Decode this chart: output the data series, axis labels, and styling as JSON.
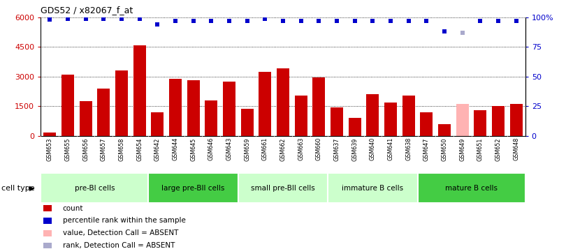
{
  "title": "GDS52 / x82067_f_at",
  "samples": [
    "GSM653",
    "GSM655",
    "GSM656",
    "GSM657",
    "GSM658",
    "GSM654",
    "GSM642",
    "GSM644",
    "GSM645",
    "GSM646",
    "GSM643",
    "GSM659",
    "GSM661",
    "GSM662",
    "GSM663",
    "GSM660",
    "GSM637",
    "GSM639",
    "GSM640",
    "GSM641",
    "GSM638",
    "GSM647",
    "GSM650",
    "GSM649",
    "GSM651",
    "GSM652",
    "GSM648"
  ],
  "bar_values": [
    150,
    3100,
    1750,
    2400,
    3300,
    4600,
    1200,
    2900,
    2800,
    1800,
    2750,
    1350,
    3250,
    3400,
    2050,
    2950,
    1450,
    900,
    2100,
    1700,
    2050,
    1200,
    600,
    1600,
    1300,
    1500,
    1600
  ],
  "bar_colors": [
    "#cc0000",
    "#cc0000",
    "#cc0000",
    "#cc0000",
    "#cc0000",
    "#cc0000",
    "#cc0000",
    "#cc0000",
    "#cc0000",
    "#cc0000",
    "#cc0000",
    "#cc0000",
    "#cc0000",
    "#cc0000",
    "#cc0000",
    "#cc0000",
    "#cc0000",
    "#cc0000",
    "#cc0000",
    "#cc0000",
    "#cc0000",
    "#cc0000",
    "#cc0000",
    "#ffb3b3",
    "#cc0000",
    "#cc0000",
    "#cc0000"
  ],
  "percentile_values": [
    98,
    99,
    99,
    99,
    99,
    99,
    94,
    97,
    97,
    97,
    97,
    97,
    99,
    97,
    97,
    97,
    97,
    97,
    97,
    97,
    97,
    97,
    88,
    87,
    97,
    97,
    97
  ],
  "percentile_colors": [
    "#0000cc",
    "#0000cc",
    "#0000cc",
    "#0000cc",
    "#0000cc",
    "#0000cc",
    "#0000cc",
    "#0000cc",
    "#0000cc",
    "#0000cc",
    "#0000cc",
    "#0000cc",
    "#0000cc",
    "#0000cc",
    "#0000cc",
    "#0000cc",
    "#0000cc",
    "#0000cc",
    "#0000cc",
    "#0000cc",
    "#0000cc",
    "#0000cc",
    "#0000cc",
    "#aaaacc",
    "#0000cc",
    "#0000cc",
    "#0000cc"
  ],
  "ylim_left": [
    0,
    6000
  ],
  "ylim_right": [
    0,
    100
  ],
  "yticks_left": [
    0,
    1500,
    3000,
    4500,
    6000
  ],
  "yticks_right": [
    0,
    25,
    50,
    75,
    100
  ],
  "ytick_labels_right": [
    "0",
    "25",
    "50",
    "75",
    "100%"
  ],
  "cell_type_groups": [
    {
      "label": "pre-BI cells",
      "start": 0,
      "end": 5,
      "color": "#ccffcc"
    },
    {
      "label": "large pre-BII cells",
      "start": 6,
      "end": 10,
      "color": "#44cc44"
    },
    {
      "label": "small pre-BII cells",
      "start": 11,
      "end": 15,
      "color": "#ccffcc"
    },
    {
      "label": "immature B cells",
      "start": 16,
      "end": 20,
      "color": "#ccffcc"
    },
    {
      "label": "mature B cells",
      "start": 21,
      "end": 26,
      "color": "#44cc44"
    }
  ],
  "legend_items": [
    {
      "label": "count",
      "color": "#cc0000"
    },
    {
      "label": "percentile rank within the sample",
      "color": "#0000cc"
    },
    {
      "label": "value, Detection Call = ABSENT",
      "color": "#ffb3b3"
    },
    {
      "label": "rank, Detection Call = ABSENT",
      "color": "#aaaacc"
    }
  ],
  "cell_type_label": "cell type",
  "background_color": "#ffffff",
  "plot_bg_color": "#ffffff",
  "xtick_bg_color": "#c8c8c8",
  "grid_color": "#000000",
  "axis_color": "#000000"
}
